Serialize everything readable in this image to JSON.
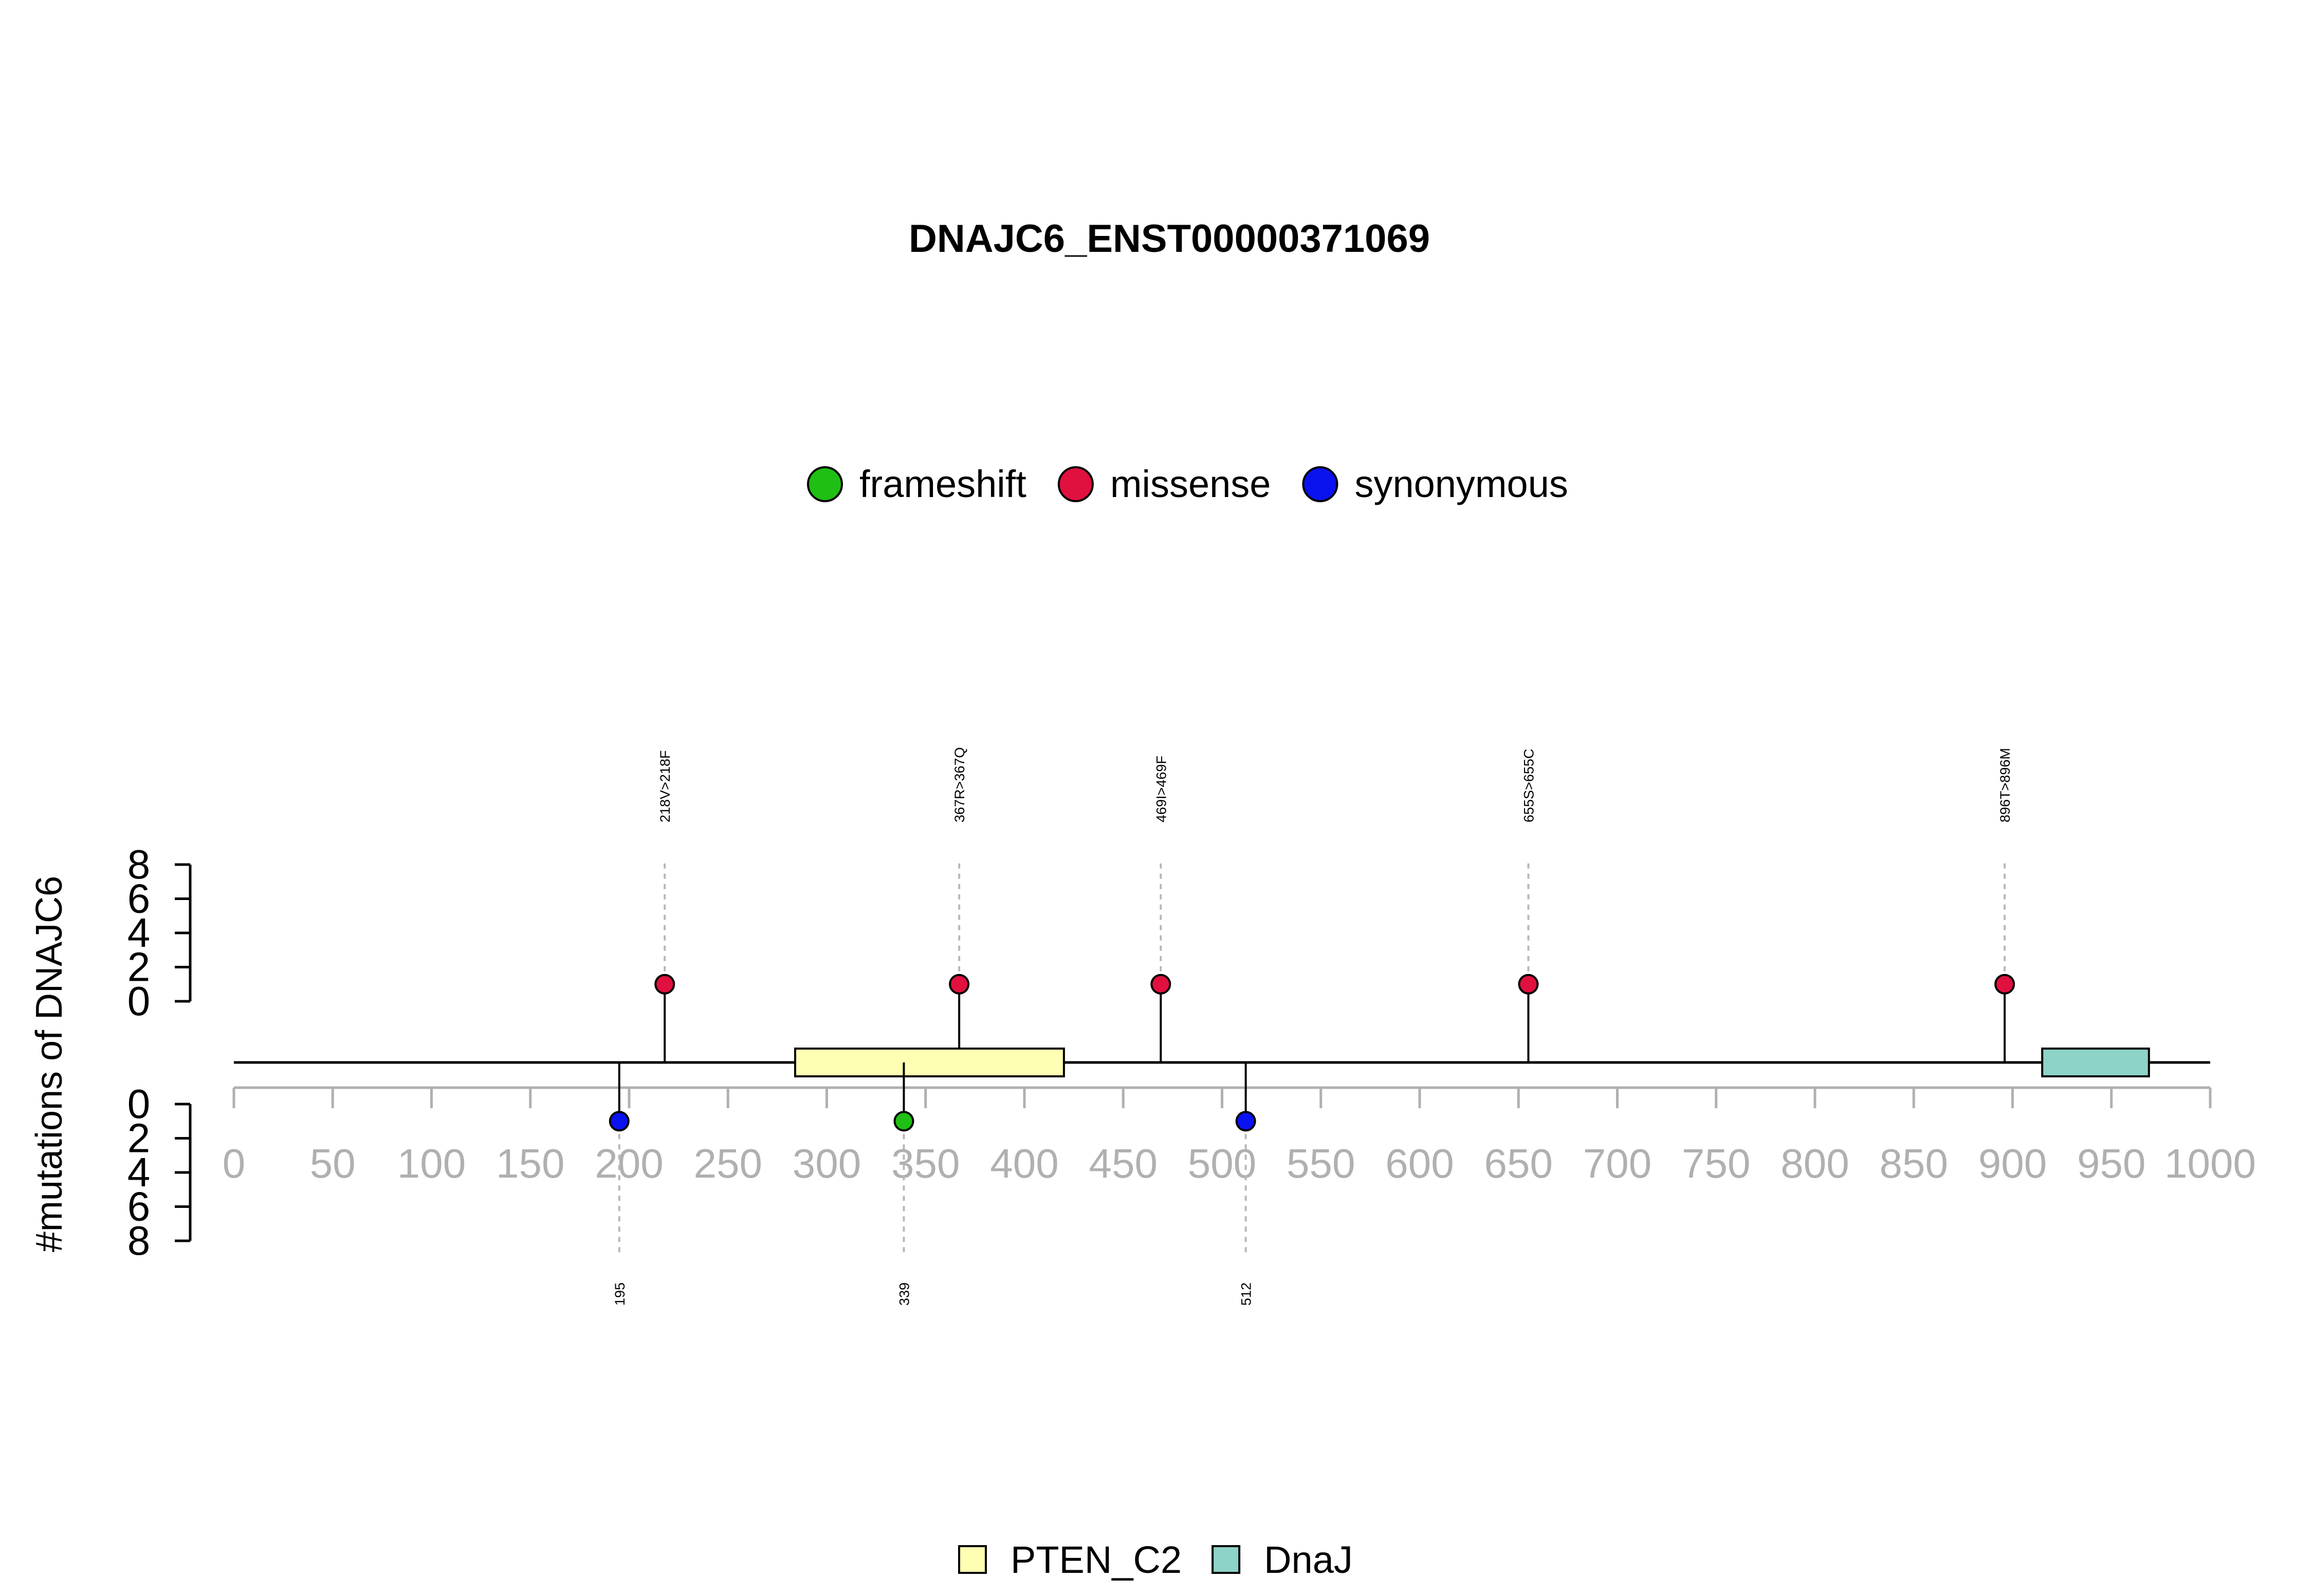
{
  "chart_data": {
    "type": "lollipop",
    "title": "DNAJC6_ENST00000371069",
    "ylabel": "#mutations of DNAJC6",
    "xlim": [
      0,
      1000
    ],
    "x_ticks": [
      0,
      50,
      100,
      150,
      200,
      250,
      300,
      350,
      400,
      450,
      500,
      550,
      600,
      650,
      700,
      750,
      800,
      850,
      900,
      950,
      1000
    ],
    "y_ticks": [
      0,
      2,
      4,
      6,
      8
    ],
    "ylim": [
      0,
      8
    ],
    "legend_position": "top-center",
    "mutation_legend": [
      {
        "name": "frameshift",
        "color": "#1fbf13"
      },
      {
        "name": "missense",
        "color": "#e0103f"
      },
      {
        "name": "synonymous",
        "color": "#0a12f0"
      }
    ],
    "domain_legend_position": "bottom-center",
    "domain_legend": [
      {
        "name": "PTEN_C2",
        "color": "#ffffb3"
      },
      {
        "name": "DnaJ",
        "color": "#8dd3c7"
      }
    ],
    "domains": [
      {
        "name": "PTEN_C2",
        "start": 284,
        "end": 420,
        "color": "#ffffb3"
      },
      {
        "name": "DnaJ",
        "start": 915,
        "end": 969,
        "color": "#8dd3c7"
      }
    ],
    "mutations_top": [
      {
        "pos": 218,
        "count": 1,
        "type": "missense",
        "label": "218V>218F"
      },
      {
        "pos": 367,
        "count": 1,
        "type": "missense",
        "label": "367R>367Q"
      },
      {
        "pos": 469,
        "count": 1,
        "type": "missense",
        "label": "469I>469F"
      },
      {
        "pos": 655,
        "count": 1,
        "type": "missense",
        "label": "655S>655C"
      },
      {
        "pos": 896,
        "count": 1,
        "type": "missense",
        "label": "896T>896M"
      }
    ],
    "mutations_bottom": [
      {
        "pos": 195,
        "count": 1,
        "type": "synonymous",
        "label": "195"
      },
      {
        "pos": 339,
        "count": 1,
        "type": "frameshift",
        "label": "339"
      },
      {
        "pos": 512,
        "count": 1,
        "type": "synonymous",
        "label": "512"
      }
    ]
  }
}
